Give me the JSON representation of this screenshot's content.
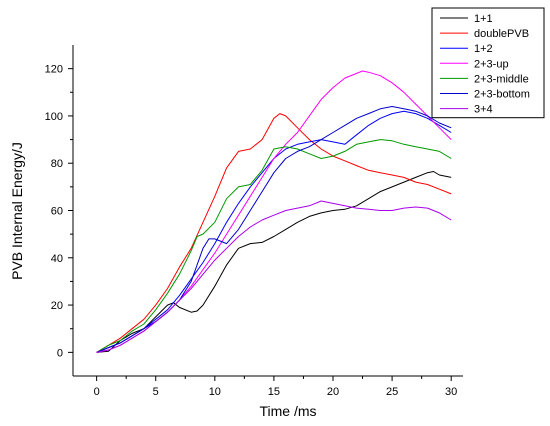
{
  "chart_data": {
    "type": "line",
    "title": "",
    "xlabel": "Time /ms",
    "ylabel": "PVB Internal Energy/J",
    "xlim": [
      -2,
      31
    ],
    "ylim": [
      -10,
      130
    ],
    "xticks": [
      0,
      5,
      10,
      15,
      20,
      25,
      30
    ],
    "yticks": [
      0,
      20,
      40,
      60,
      80,
      100,
      120
    ],
    "grid": false,
    "legend": "top-right",
    "series": [
      {
        "name": "1+1",
        "color": "#000000",
        "x": [
          0,
          1,
          2,
          3,
          4,
          5,
          6,
          6.5,
          7,
          8,
          8.5,
          9,
          10,
          11,
          12,
          13,
          14,
          15,
          16,
          17,
          18,
          19,
          20,
          21,
          22,
          23,
          24,
          25,
          26,
          27,
          28,
          28.5,
          29,
          30
        ],
        "y": [
          0,
          0.5,
          5,
          8,
          10,
          15,
          20,
          21,
          19,
          17,
          17.5,
          20,
          28,
          37,
          44,
          46,
          46.5,
          49,
          52,
          55,
          57.5,
          59,
          60,
          60.5,
          62,
          65,
          68,
          70,
          72,
          74,
          76,
          76.5,
          75,
          74
        ]
      },
      {
        "name": "doublePVB",
        "color": "#ff0000",
        "x": [
          0,
          1,
          2,
          3,
          4,
          5,
          6,
          7,
          8,
          9,
          10,
          11,
          12,
          13,
          14,
          15,
          15.5,
          16,
          17,
          18,
          19,
          20,
          21,
          22,
          23,
          24,
          25,
          26,
          27,
          28,
          29,
          30
        ],
        "y": [
          0,
          3,
          6,
          10,
          14,
          20,
          27,
          36,
          44,
          55,
          66,
          78,
          85,
          86,
          90,
          99,
          101,
          100,
          95,
          90,
          86,
          83,
          81,
          79,
          77,
          76,
          75,
          74,
          72,
          71,
          69,
          67
        ]
      },
      {
        "name": "1+2",
        "color": "#0000ff",
        "x": [
          0,
          1,
          2,
          3,
          4,
          5,
          6,
          7,
          8,
          9,
          10,
          11,
          12,
          13,
          14,
          15,
          16,
          17,
          18,
          19,
          20,
          21,
          22,
          23,
          24,
          25,
          26,
          27,
          28,
          29,
          30
        ],
        "y": [
          0,
          2,
          4,
          7,
          10,
          14,
          18,
          24,
          31,
          38,
          46,
          55,
          63,
          70,
          76,
          82,
          86,
          88,
          89,
          90,
          89,
          88,
          92,
          96,
          99,
          101,
          102,
          101,
          99,
          96,
          93
        ]
      },
      {
        "name": "2+3-up",
        "color": "#ff00ff",
        "x": [
          0,
          1,
          2,
          3,
          4,
          5,
          6,
          7,
          8,
          9,
          10,
          11,
          12,
          13,
          14,
          15,
          16,
          17,
          18,
          19,
          20,
          21,
          22,
          22.5,
          23,
          24,
          25,
          26,
          27,
          28,
          29,
          30
        ],
        "y": [
          0,
          1,
          3,
          6,
          9,
          13,
          17,
          22,
          28,
          35,
          42,
          50,
          58,
          66,
          74,
          82,
          88,
          93,
          100,
          107,
          112,
          116,
          118,
          119,
          118.5,
          117,
          114,
          110,
          105,
          100,
          95,
          90
        ]
      },
      {
        "name": "2+3-middle",
        "color": "#009900",
        "x": [
          0,
          1,
          2,
          3,
          4,
          5,
          6,
          7,
          8,
          8.5,
          9,
          10,
          11,
          12,
          13,
          14,
          15,
          16,
          17,
          18,
          19,
          20,
          21,
          22,
          23,
          24,
          25,
          26,
          27,
          28,
          29,
          30
        ],
        "y": [
          0,
          3,
          5,
          9,
          12,
          18,
          25,
          33,
          43,
          49,
          50,
          55,
          65,
          70,
          71,
          77,
          86,
          87,
          86,
          84,
          82,
          83,
          85,
          88,
          89,
          90,
          89.5,
          88,
          87,
          86,
          85,
          82
        ]
      },
      {
        "name": "2+3-bottom",
        "color": "#0000cc",
        "x": [
          0,
          1,
          2,
          3,
          4,
          5,
          6,
          7,
          8,
          9,
          9.5,
          10,
          11,
          12,
          13,
          14,
          15,
          16,
          17,
          18,
          19,
          20,
          21,
          22,
          23,
          24,
          25,
          26,
          27,
          28,
          29,
          30
        ],
        "y": [
          0,
          2,
          4,
          7,
          10,
          13,
          17,
          22,
          30,
          44,
          48,
          48,
          46,
          52,
          60,
          68,
          76,
          82,
          85,
          87,
          90,
          93,
          96,
          99,
          101,
          103,
          104,
          103,
          102,
          100,
          97,
          95
        ]
      },
      {
        "name": "3+4",
        "color": "#aa00ee",
        "x": [
          0,
          1,
          2,
          3,
          4,
          5,
          6,
          7,
          8,
          9,
          10,
          11,
          12,
          13,
          14,
          15,
          16,
          17,
          18,
          19,
          20,
          21,
          22,
          23,
          24,
          25,
          26,
          27,
          28,
          29,
          30
        ],
        "y": [
          0,
          1,
          3,
          6,
          9,
          13,
          17,
          22,
          27,
          33,
          39,
          44,
          49,
          53,
          56,
          58,
          60,
          61,
          62,
          64,
          63,
          62,
          61,
          60.5,
          60,
          60,
          61,
          61.5,
          61,
          59,
          56
        ]
      }
    ]
  }
}
